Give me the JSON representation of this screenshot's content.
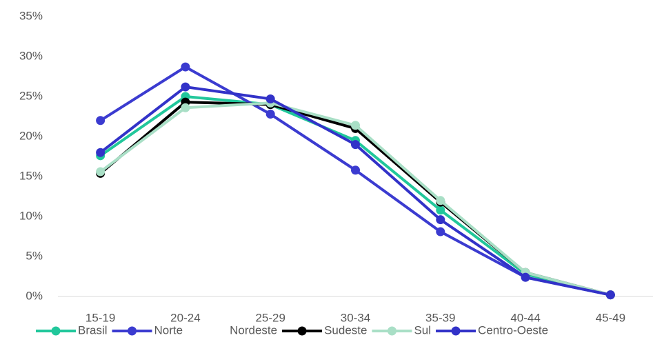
{
  "chart_data": {
    "type": "line",
    "categories": [
      "15-19",
      "20-24",
      "25-29",
      "30-34",
      "35-39",
      "40-44",
      "45-49"
    ],
    "series": [
      {
        "name": "Brasil",
        "color": "#21c79b",
        "values": [
          17.6,
          25,
          24,
          19.5,
          10.8,
          2.8,
          0.2
        ]
      },
      {
        "name": "Norte",
        "color": "#3b3bd0",
        "values": [
          22,
          28.7,
          22.8,
          15.8,
          8.1,
          2.4,
          0.2
        ]
      },
      {
        "name": "Nordeste",
        "color": "#ffffff",
        "values": [
          null,
          null,
          null,
          null,
          null,
          null,
          null
        ]
      },
      {
        "name": "Sudeste",
        "color": "#000000",
        "values": [
          15.4,
          24.3,
          24,
          21,
          11.8,
          3,
          0.2
        ]
      },
      {
        "name": "Sul",
        "color": "#a9dfc6",
        "values": [
          15.6,
          23.6,
          24.2,
          21.4,
          12,
          3,
          0.2
        ]
      },
      {
        "name": "Centro-Oeste",
        "color": "#3232c8",
        "values": [
          18,
          26.2,
          24.7,
          19,
          9.6,
          2.4,
          0.2
        ]
      }
    ],
    "ylim": [
      0,
      35
    ],
    "yticks": [
      {
        "value": 0,
        "label": "0%"
      },
      {
        "value": 5,
        "label": "5%"
      },
      {
        "value": 10,
        "label": "10%"
      },
      {
        "value": 15,
        "label": "15%"
      },
      {
        "value": 20,
        "label": "20%"
      },
      {
        "value": 25,
        "label": "25%"
      },
      {
        "value": 30,
        "label": "30%"
      },
      {
        "value": 35,
        "label": "35%"
      }
    ],
    "grid": false
  }
}
